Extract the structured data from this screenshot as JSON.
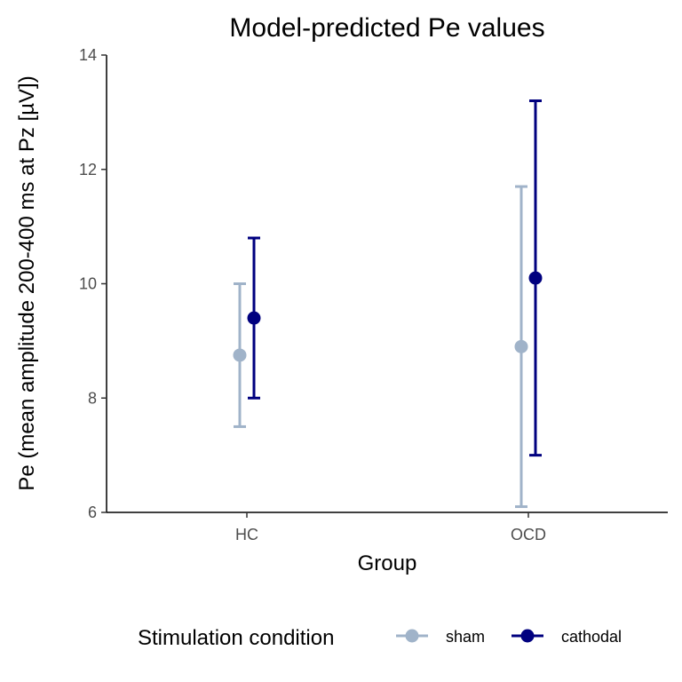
{
  "chart_data": {
    "type": "scatter",
    "title": "Model-predicted Pe values",
    "xlabel": "Group",
    "ylabel": "Pe (mean amplitude 200-400 ms at Pz [µV])",
    "categories": [
      "HC",
      "OCD"
    ],
    "ylim": [
      6,
      14
    ],
    "yticks": [
      6,
      8,
      10,
      12,
      14
    ],
    "grid": false,
    "legend": {
      "title": "Stimulation condition",
      "placement": "bottom"
    },
    "series": [
      {
        "name": "sham",
        "color": "#a0b3c9",
        "values": [
          8.75,
          8.9
        ],
        "lower": [
          7.5,
          6.1
        ],
        "upper": [
          10.0,
          11.7
        ]
      },
      {
        "name": "cathodal",
        "color": "#00007f",
        "values": [
          9.4,
          10.1
        ],
        "lower": [
          8.0,
          7.0
        ],
        "upper": [
          10.8,
          13.2
        ]
      }
    ]
  }
}
